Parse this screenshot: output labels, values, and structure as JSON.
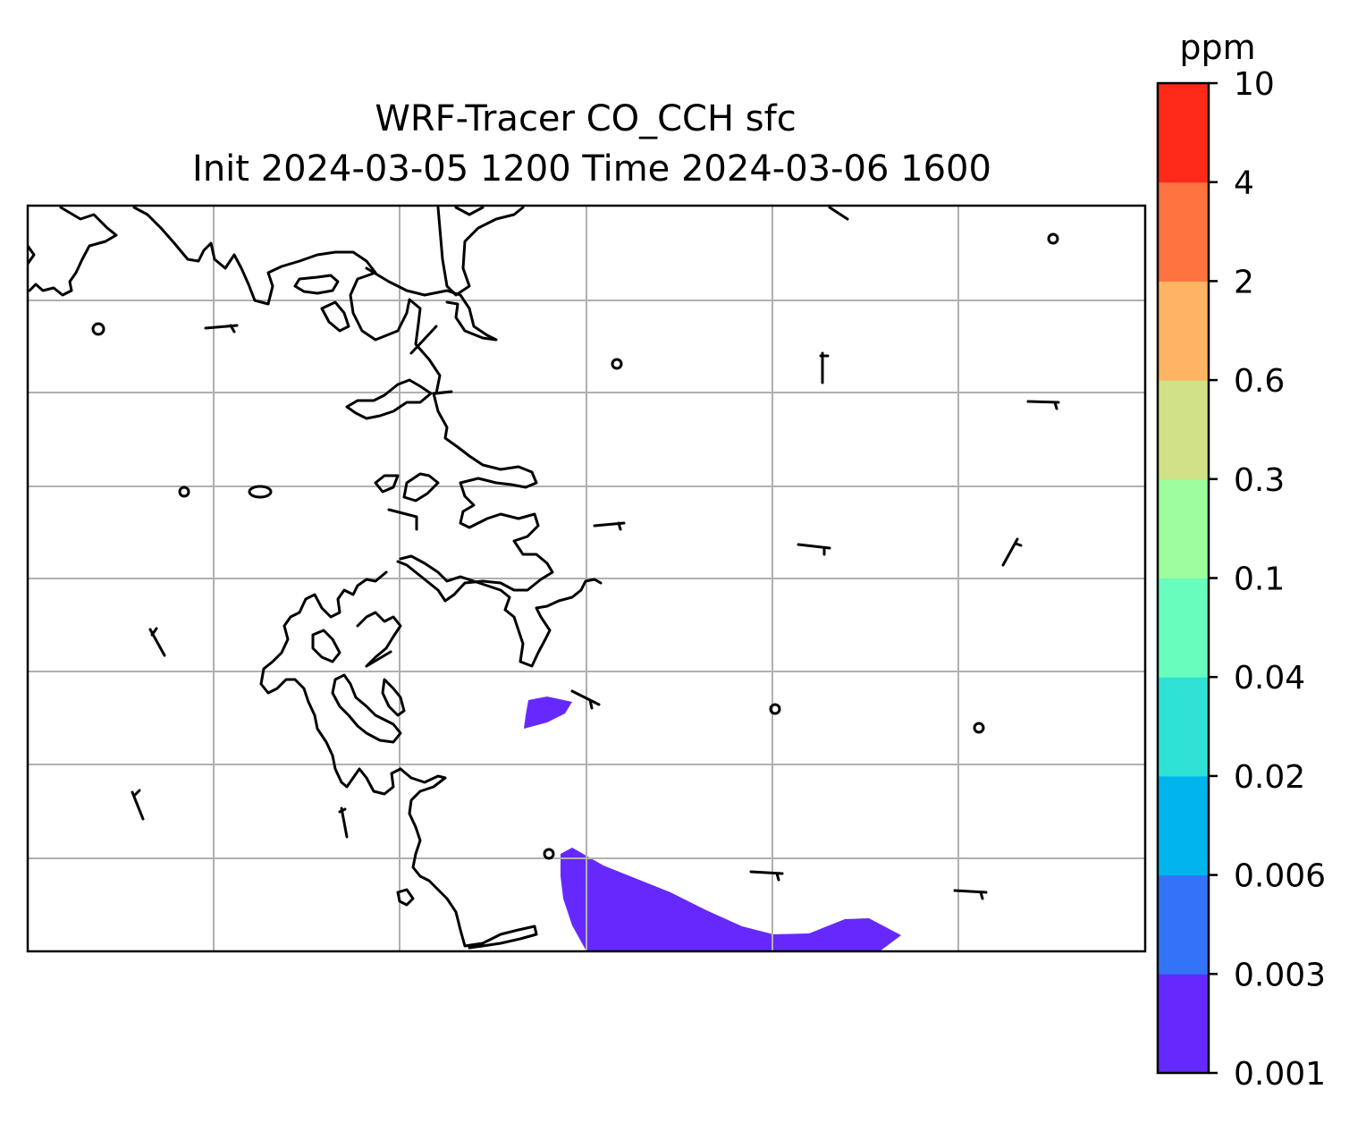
{
  "title": {
    "line1": "WRF-Tracer CO_CCH sfc",
    "line2": "Init 2024-03-05 1200 Time 2024-03-06 1600"
  },
  "colorbar": {
    "units": "ppm",
    "levels": [
      "0.001",
      "0.003",
      "0.006",
      "0.02",
      "0.04",
      "0.1",
      "0.3",
      "0.6",
      "2",
      "4",
      "10"
    ],
    "colors": [
      "#6629fd",
      "#3274f5",
      "#00b5eb",
      "#30e1d6",
      "#68fcbd",
      "#9cfd9d",
      "#d0e186",
      "#feb462",
      "#fe7340",
      "#ff2a1a"
    ]
  },
  "map": {
    "gridlines": true,
    "coastline_color": "#000000",
    "grid_color": "#b0b0b0",
    "tracer_fill_color": "#6629fd",
    "tracer_level": "0.001-0.003"
  }
}
